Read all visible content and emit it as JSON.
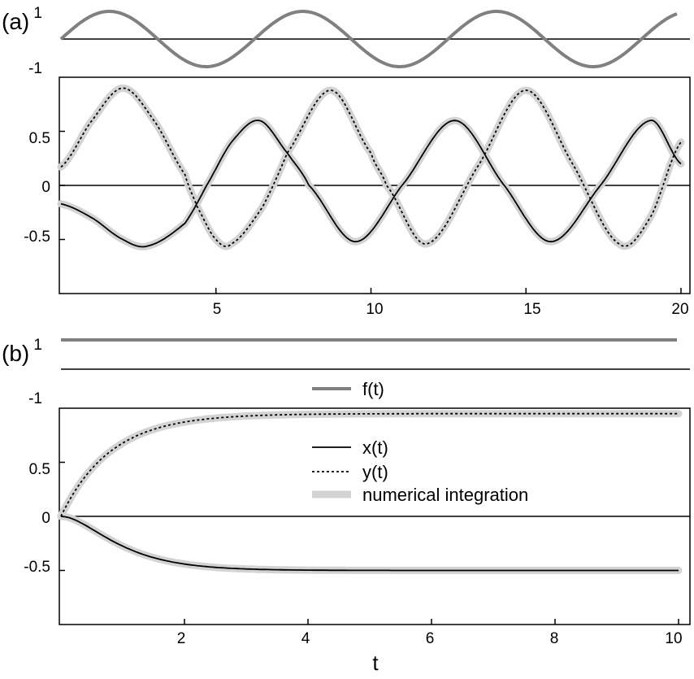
{
  "chart_data": [
    {
      "panel": "(a)",
      "type": "line",
      "subplots": [
        {
          "role": "forcing",
          "xlim": [
            0,
            20
          ],
          "ylim": [
            -1,
            1
          ],
          "yticks": [
            "1",
            "-1"
          ],
          "zero_line": true,
          "series": [
            {
              "key": "f",
              "formula": "sin(t)",
              "color": "#808080",
              "points": [
                [
                  0,
                  0
                ],
                [
                  1.571,
                  1
                ],
                [
                  4.712,
                  -1
                ],
                [
                  7.854,
                  1
                ],
                [
                  10.996,
                  -1
                ],
                [
                  14.137,
                  1
                ],
                [
                  17.279,
                  -1
                ],
                [
                  20,
                  0.913
                ]
              ]
            }
          ]
        },
        {
          "role": "response",
          "xlim": [
            0,
            20
          ],
          "ylim": [
            -1,
            1
          ],
          "yticks": [
            "0.5",
            "0",
            "-0.5"
          ],
          "xticks": [
            "5",
            "10",
            "15",
            "20"
          ],
          "zero_line": true,
          "series": [
            {
              "key": "x",
              "style": "solid",
              "points": [
                [
                  0,
                  -0.17
                ],
                [
                  1,
                  -0.3
                ],
                [
                  2,
                  -0.5
                ],
                [
                  2.8,
                  -0.56
                ],
                [
                  4,
                  -0.35
                ],
                [
                  4.7,
                  0
                ],
                [
                  5.5,
                  0.4
                ],
                [
                  6.4,
                  0.6
                ],
                [
                  7.3,
                  0.3
                ],
                [
                  8,
                  0
                ],
                [
                  9.5,
                  -0.52
                ],
                [
                  11,
                  0
                ],
                [
                  12.7,
                  0.6
                ],
                [
                  14.3,
                  0
                ],
                [
                  15.8,
                  -0.52
                ],
                [
                  17.4,
                  0
                ],
                [
                  19,
                  0.6
                ],
                [
                  20,
                  0.2
                ]
              ]
            },
            {
              "key": "y",
              "style": "dotted",
              "points": [
                [
                  0,
                  0.17
                ],
                [
                  1,
                  0.6
                ],
                [
                  2,
                  0.9
                ],
                [
                  3,
                  0.6
                ],
                [
                  4,
                  0.1
                ],
                [
                  4.4,
                  -0.2
                ],
                [
                  5,
                  -0.5
                ],
                [
                  5.5,
                  -0.54
                ],
                [
                  6.5,
                  -0.2
                ],
                [
                  7.3,
                  0.3
                ],
                [
                  8.7,
                  0.88
                ],
                [
                  10,
                  0.3
                ],
                [
                  10.5,
                  0
                ],
                [
                  11.8,
                  -0.54
                ],
                [
                  13.5,
                  0.2
                ],
                [
                  15,
                  0.88
                ],
                [
                  16.5,
                  0.2
                ],
                [
                  18,
                  -0.54
                ],
                [
                  19,
                  -0.3
                ],
                [
                  20,
                  0.4
                ]
              ]
            },
            {
              "key": "numerical",
              "style": "wide-gray",
              "follows": [
                "x",
                "y"
              ]
            }
          ]
        }
      ]
    },
    {
      "panel": "(b)",
      "type": "line",
      "subplots": [
        {
          "role": "forcing",
          "xlim": [
            0,
            10
          ],
          "ylim": [
            -1,
            1
          ],
          "yticks": [
            "1",
            "-1"
          ],
          "zero_line": true,
          "series": [
            {
              "key": "f",
              "formula": "constant",
              "value": 1,
              "color": "#808080"
            }
          ],
          "legend": [
            {
              "key": "f",
              "label": "f(t)",
              "style": "gray"
            }
          ]
        },
        {
          "role": "response",
          "xlim": [
            0,
            10
          ],
          "ylim": [
            -1,
            1
          ],
          "yticks": [
            "0.5",
            "0",
            "-0.5"
          ],
          "xticks": [
            "2",
            "4",
            "6",
            "8",
            "10"
          ],
          "xlabel": "t",
          "zero_line": true,
          "series": [
            {
              "key": "x",
              "style": "solid",
              "asymptote": -0.5,
              "rate": 1.6
            },
            {
              "key": "y",
              "style": "dotted",
              "asymptote": 0.95,
              "rate": 1.25
            },
            {
              "key": "numerical",
              "style": "wide-gray",
              "follows": [
                "x",
                "y"
              ]
            }
          ],
          "legend": [
            {
              "key": "x",
              "label": "x(t)",
              "style": "solid"
            },
            {
              "key": "y",
              "label": "y(t)",
              "style": "dotted"
            },
            {
              "key": "numerical",
              "label": "numerical integration",
              "style": "wide-gray"
            }
          ]
        }
      ]
    }
  ]
}
